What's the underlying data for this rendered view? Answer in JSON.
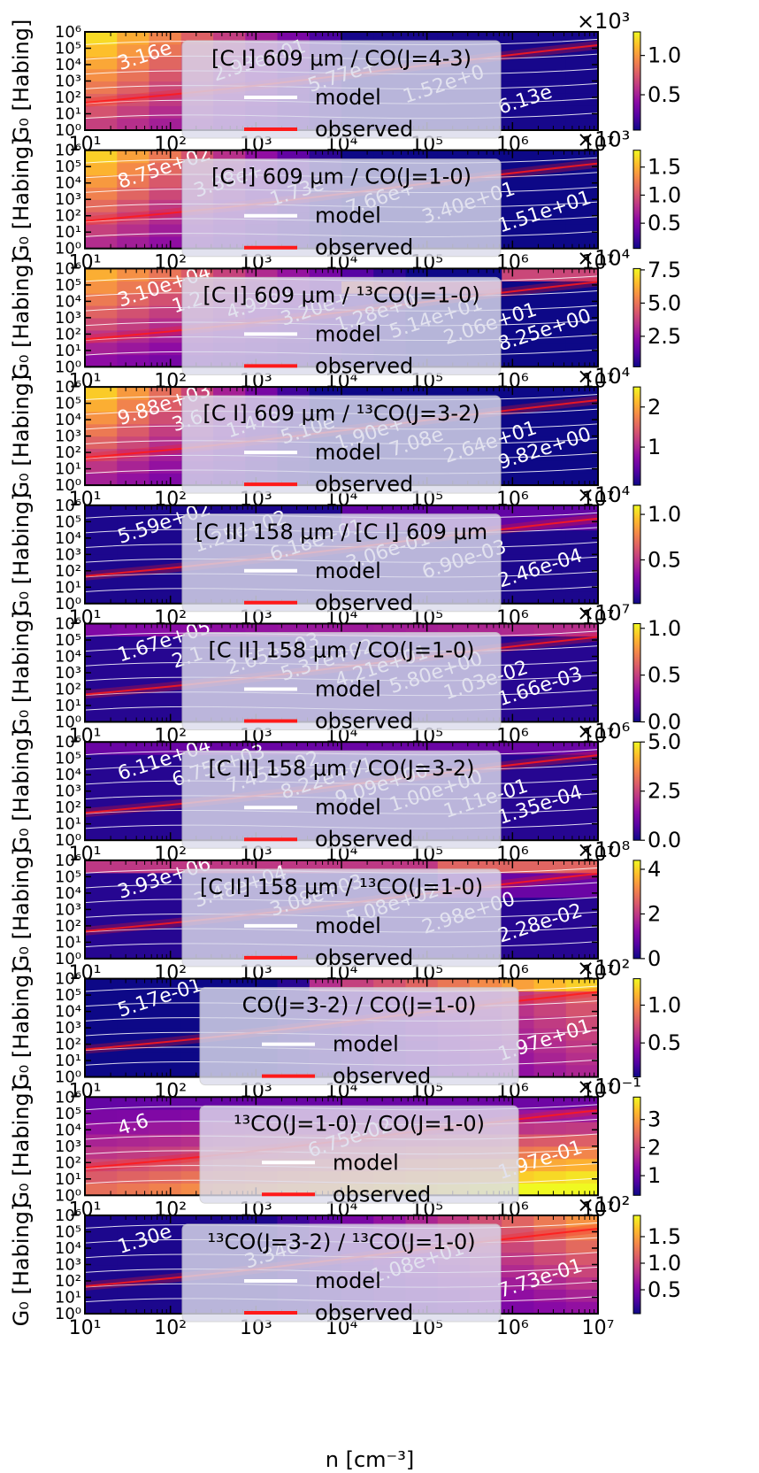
{
  "figure": {
    "xlabel": "n [cm⁻³]",
    "ylabel": "G₀ [Habing]",
    "legend_model": "model",
    "legend_observed": "observed",
    "colors": {
      "model_line": "#ffffff",
      "observed_line": "#ff1a1a",
      "frame": "#000000",
      "legend_bg": "#dcdcec"
    },
    "colormap": "plasma",
    "x_tick_labels": [
      "10¹",
      "10²",
      "10³",
      "10⁴",
      "10⁵",
      "10⁶",
      "10⁷"
    ],
    "y_tick_labels": [
      "10⁰",
      "10¹",
      "10²",
      "10³",
      "10⁴",
      "10⁵",
      "10⁶"
    ]
  },
  "chart_data": [
    {
      "type": "heatmap",
      "title": "[C I] 609 μm / CO(J=4-3)",
      "xlabel": "",
      "ylabel": "G₀ [Habing]",
      "x_scale": "log",
      "y_scale": "log",
      "xlim": [
        10,
        10000000
      ],
      "ylim": [
        1,
        1000000
      ],
      "colorbar_ticks": [
        "0.5",
        "1.0"
      ],
      "colorbar_range": [
        0.05,
        1.3
      ],
      "colorbar_multiplier": "×10³",
      "contour_labels": [
        "3.16e",
        "2.93e+01",
        "5.77e+",
        "1.52e+0",
        "6.13e"
      ]
    },
    {
      "type": "heatmap",
      "title": "[C I] 609 μm / CO(J=1-0)",
      "xlabel": "",
      "ylabel": "G₀ [Habing]",
      "x_scale": "log",
      "y_scale": "log",
      "xlim": [
        10,
        10000000
      ],
      "ylim": [
        1,
        1000000
      ],
      "colorbar_ticks": [
        "0.5",
        "1.0",
        "1.5"
      ],
      "colorbar_range": [
        0.05,
        1.8
      ],
      "colorbar_multiplier": "×10³",
      "contour_labels": [
        "8.75e+02",
        "3.88e+",
        "1.73e",
        "7.66e+",
        "3.40e+01",
        "1.51e+01"
      ]
    },
    {
      "type": "heatmap",
      "title": "[C I] 609 μm / ¹³CO(J=1-0)",
      "xlabel": "",
      "ylabel": "G₀ [Habing]",
      "x_scale": "log",
      "y_scale": "log",
      "xlim": [
        10,
        10000000
      ],
      "ylim": [
        1,
        1000000
      ],
      "colorbar_ticks": [
        "2.5",
        "5.0",
        "7.5"
      ],
      "colorbar_range": [
        0.2,
        7.6
      ],
      "colorbar_multiplier": "×10⁴",
      "contour_labels": [
        "3.10e+04",
        "1.2",
        "4.99e+",
        "3.20e+",
        "1.28e+0",
        "5.14e+01",
        "2.06e+01",
        "8.25e+00"
      ]
    },
    {
      "type": "heatmap",
      "title": "[C I] 609 μm / ¹³CO(J=3-2)",
      "xlabel": "",
      "ylabel": "G₀ [Habing]",
      "x_scale": "log",
      "y_scale": "log",
      "xlim": [
        10,
        10000000
      ],
      "ylim": [
        1,
        1000000
      ],
      "colorbar_ticks": [
        "1",
        "2"
      ],
      "colorbar_range": [
        0.05,
        2.5
      ],
      "colorbar_multiplier": "×10⁴",
      "contour_labels": [
        "9.88e+03",
        "3.6",
        "1.47e",
        "5.10e",
        "1.90e+",
        "7.08e",
        "2.64e+01",
        "9.82e+00"
      ]
    },
    {
      "type": "heatmap",
      "title": "[C II] 158 μm / [C I] 609 μm",
      "xlabel": "",
      "ylabel": "G₀ [Habing]",
      "x_scale": "log",
      "y_scale": "log",
      "xlim": [
        10,
        10000000
      ],
      "ylim": [
        1,
        1000000
      ],
      "colorbar_ticks": [
        "0.5",
        "1.0"
      ],
      "colorbar_range": [
        0.02,
        1.1
      ],
      "colorbar_multiplier": "×10⁴",
      "contour_labels": [
        "5.59e+02",
        "1.25e+02",
        "6.18e+01",
        "3.06e-01",
        "6.90e-03",
        "2.46e-04"
      ]
    },
    {
      "type": "heatmap",
      "title": "[C II] 158 μm / CO(J=1-0)",
      "xlabel": "",
      "ylabel": "G₀ [Habing]",
      "x_scale": "log",
      "y_scale": "log",
      "xlim": [
        10,
        10000000
      ],
      "ylim": [
        1,
        1000000
      ],
      "colorbar_ticks": [
        "0.0",
        "0.5",
        "1.0"
      ],
      "colorbar_range": [
        0.0,
        1.05
      ],
      "colorbar_multiplier": "×10⁷",
      "contour_labels": [
        "1.67e+05",
        "2.1",
        "2.65e+03",
        "5.37e+02",
        "4.21e+01",
        "5.80e+00",
        "1.03e-02",
        "1.66e-03"
      ]
    },
    {
      "type": "heatmap",
      "title": "[C II] 158 μm / CO(J=3-2)",
      "xlabel": "",
      "ylabel": "G₀ [Habing]",
      "x_scale": "log",
      "y_scale": "log",
      "xlim": [
        10,
        10000000
      ],
      "ylim": [
        1,
        1000000
      ],
      "colorbar_ticks": [
        "0.0",
        "2.5",
        "5.0"
      ],
      "colorbar_range": [
        0.0,
        5.0
      ],
      "colorbar_multiplier": "×10⁶",
      "contour_labels": [
        "6.11e+04",
        "6.75e+03",
        "7.45e+02",
        "8.22e+01",
        "9.09e+00",
        "1.00e+00",
        "1.11e-01",
        "1.35e-04"
      ]
    },
    {
      "type": "heatmap",
      "title": "[C II] 158 μm / ¹³CO(J=1-0)",
      "xlabel": "",
      "ylabel": "G₀ [Habing]",
      "x_scale": "log",
      "y_scale": "log",
      "xlim": [
        10,
        10000000
      ],
      "ylim": [
        1,
        1000000
      ],
      "colorbar_ticks": [
        "0",
        "2",
        "4"
      ],
      "colorbar_range": [
        0.0,
        4.4
      ],
      "colorbar_multiplier": "×10⁸",
      "contour_labels": [
        "3.93e+06",
        "3.48e+04",
        "3.08e+03",
        "5.08e+02",
        "2.98e+00",
        "2.28e-02"
      ]
    },
    {
      "type": "heatmap",
      "title": "CO(J=3-2) / CO(J=1-0)",
      "xlabel": "",
      "ylabel": "G₀ [Habing]",
      "x_scale": "log",
      "y_scale": "log",
      "xlim": [
        10,
        10000000
      ],
      "ylim": [
        1,
        1000000
      ],
      "colorbar_ticks": [
        "0.5",
        "1.0"
      ],
      "colorbar_range": [
        0.05,
        1.35
      ],
      "colorbar_multiplier": "×10²",
      "contour_labels": [
        "5.17e-01",
        "1.97e+01"
      ]
    },
    {
      "type": "heatmap",
      "title": "¹³CO(J=1-0) / CO(J=1-0)",
      "xlabel": "",
      "ylabel": "G₀ [Habing]",
      "x_scale": "log",
      "y_scale": "log",
      "xlim": [
        10,
        10000000
      ],
      "ylim": [
        1,
        1000000
      ],
      "colorbar_ticks": [
        "1",
        "2",
        "3"
      ],
      "colorbar_range": [
        0.3,
        3.8
      ],
      "colorbar_multiplier": "×10⁻¹",
      "contour_labels": [
        "4.6",
        "6.75e-02",
        "1.97e-01"
      ]
    },
    {
      "type": "heatmap",
      "title": "¹³CO(J=3-2) / ¹³CO(J=1-0)",
      "xlabel": "n [cm⁻³]",
      "ylabel": "G₀ [Habing]",
      "x_scale": "log",
      "y_scale": "log",
      "xlim": [
        10,
        10000000
      ],
      "ylim": [
        1,
        1000000
      ],
      "colorbar_ticks": [
        "0.5",
        "1.0",
        "1.5"
      ],
      "colorbar_range": [
        0.05,
        1.9
      ],
      "colorbar_multiplier": "×10²",
      "contour_labels": [
        "1.30e",
        "3.34e",
        "1.08e+01",
        "7.73e-01"
      ]
    }
  ]
}
